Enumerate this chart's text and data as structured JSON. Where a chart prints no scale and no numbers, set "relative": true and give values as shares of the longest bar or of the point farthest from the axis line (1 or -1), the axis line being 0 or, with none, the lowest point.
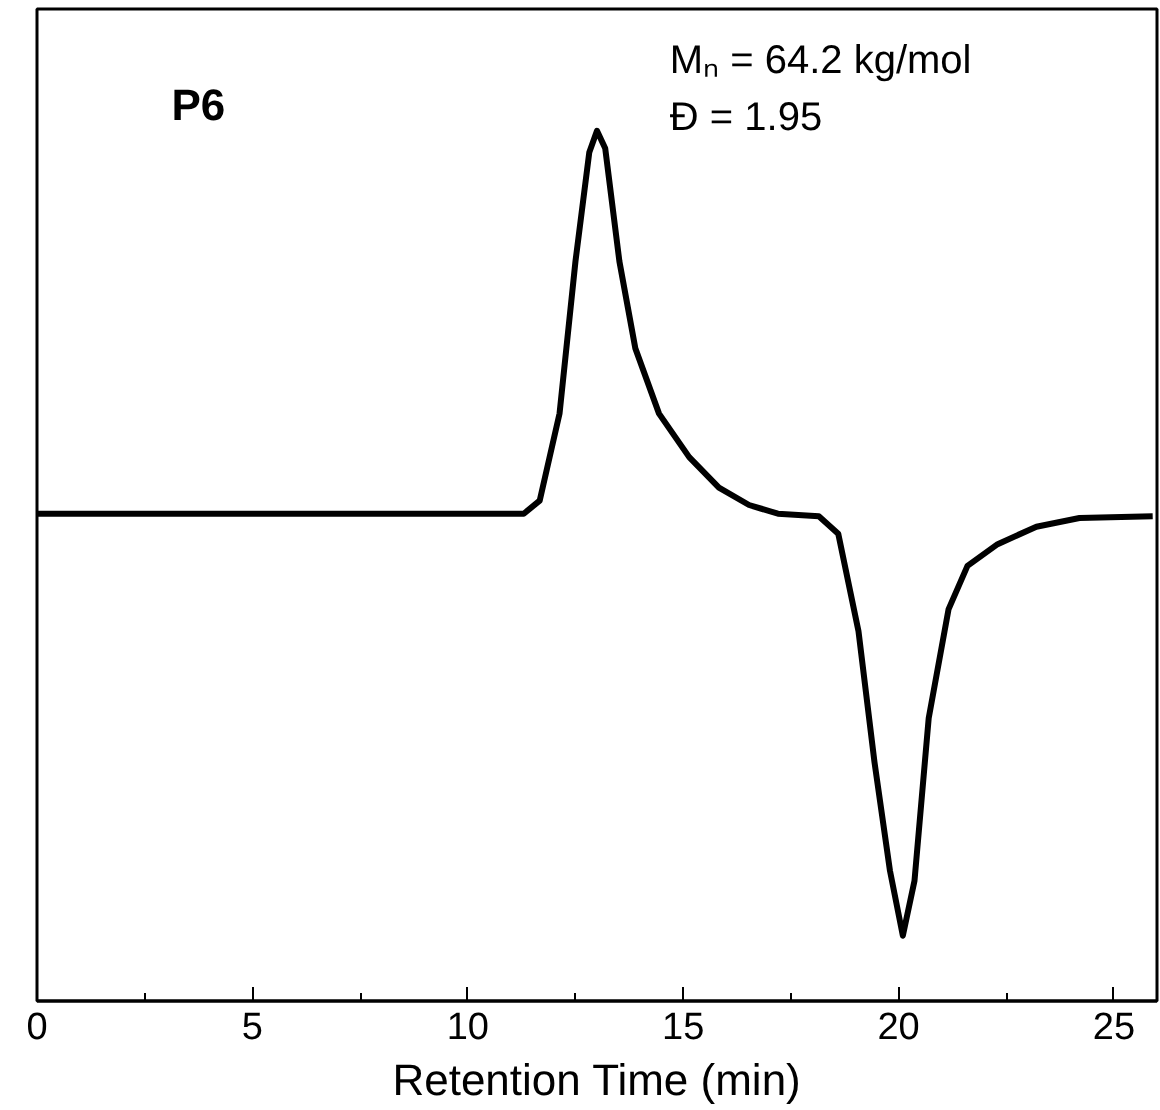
{
  "chart_data": {
    "type": "line",
    "relative": true,
    "xlabel": "Retention Time (min)",
    "x": [
      0,
      11.3,
      11.67,
      12.13,
      12.5,
      12.82,
      13.0,
      13.19,
      13.52,
      13.89,
      14.44,
      15.14,
      15.83,
      16.53,
      17.2,
      18.15,
      18.6,
      19.07,
      19.44,
      19.8,
      20.1,
      20.37,
      20.7,
      21.16,
      21.6,
      22.3,
      23.2,
      24.2,
      25.9
    ],
    "series": [
      {
        "color": "#000000",
        "values": [
          0.56,
          0.56,
          0.575,
          0.675,
          0.85,
          0.975,
          1.0,
          0.98,
          0.85,
          0.75,
          0.675,
          0.625,
          0.59,
          0.57,
          0.56,
          0.557,
          0.537,
          0.425,
          0.275,
          0.15,
          0.075,
          0.138,
          0.325,
          0.45,
          0.5,
          0.525,
          0.545,
          0.555,
          0.557
        ]
      }
    ],
    "xlim": [
      0,
      26
    ],
    "xticks": [
      0,
      {
        "value": 2.5,
        "label": null
      },
      5,
      {
        "value": 7.5,
        "label": null
      },
      10,
      {
        "value": 12.5,
        "label": null
      },
      15,
      {
        "value": 17.5,
        "label": null
      },
      20,
      {
        "value": 22.5,
        "label": null
      },
      25
    ],
    "tick_labels": "x",
    "grid": false,
    "marker": "none",
    "line_style": "solid",
    "annotations": [
      "P6",
      "Mₙ = 64.2 kg/mol",
      "Đ = 1.95"
    ]
  }
}
